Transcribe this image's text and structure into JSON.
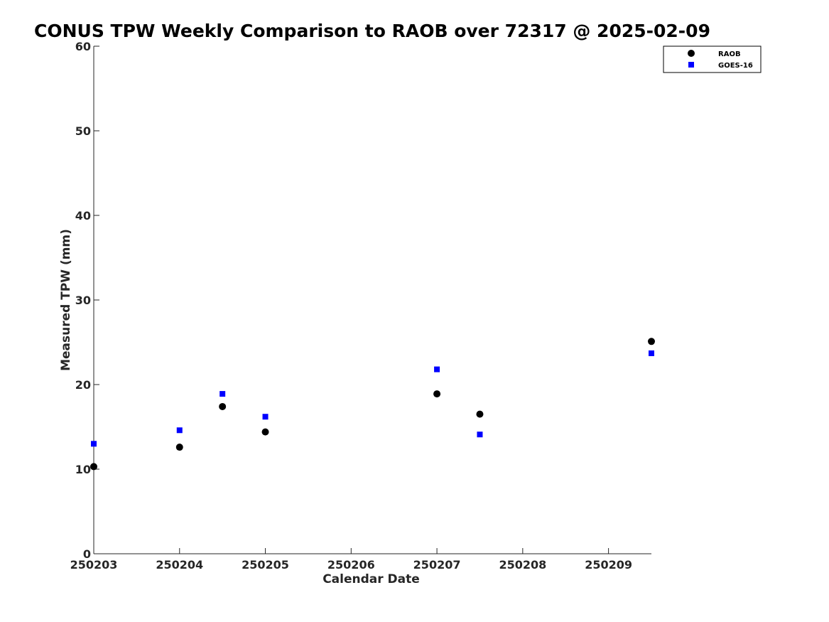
{
  "chart_data": {
    "type": "scatter",
    "title": "CONUS TPW Weekly Comparison to RAOB over 72317 @ 2025-02-09",
    "xlabel": "Calendar Date",
    "ylabel": "Measured TPW (mm)",
    "xlim": [
      250203,
      250209.5
    ],
    "ylim": [
      0,
      60
    ],
    "x_ticks": [
      250203,
      250204,
      250205,
      250206,
      250207,
      250208,
      250209
    ],
    "x_tick_labels": [
      "250203",
      "250204",
      "250205",
      "250206",
      "250207",
      "250208",
      "250209"
    ],
    "y_ticks": [
      0,
      10,
      20,
      30,
      40,
      50,
      60
    ],
    "y_tick_labels": [
      "0",
      "10",
      "20",
      "30",
      "40",
      "50",
      "60"
    ],
    "grid": false,
    "legend_position": "top-right",
    "series": [
      {
        "name": "RAOB",
        "marker": "circle",
        "color": "#000000",
        "x": [
          250203,
          250204,
          250204.5,
          250205,
          250207,
          250207.5,
          250209.5
        ],
        "y": [
          10.3,
          12.6,
          17.4,
          14.4,
          18.9,
          16.5,
          25.1
        ]
      },
      {
        "name": "GOES-16",
        "marker": "square",
        "color": "#0000ff",
        "x": [
          250203,
          250204,
          250204.5,
          250205,
          250207,
          250207.5,
          250209.5
        ],
        "y": [
          13.0,
          14.6,
          18.9,
          16.2,
          21.8,
          14.1,
          23.7
        ]
      }
    ]
  }
}
